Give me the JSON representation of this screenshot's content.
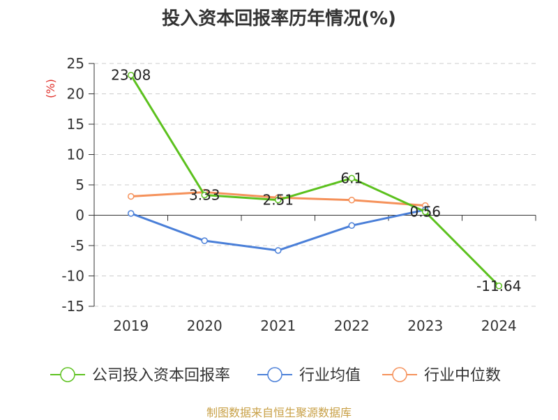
{
  "title": "投入资本回报率历年情况(%)",
  "source": "制图数据来自恒生聚源数据库",
  "colors": {
    "company": "#5cc11e",
    "industry_avg": "#4a7fd8",
    "industry_median": "#f5915a",
    "unit": "#e0302a",
    "source": "#c8a046"
  },
  "chart_data": {
    "type": "line",
    "title": "投入资本回报率历年情况(%)",
    "ylabel": "(%)",
    "xlabel": "",
    "categories": [
      "2019",
      "2020",
      "2021",
      "2022",
      "2023",
      "2024"
    ],
    "ylim": [
      -15,
      25
    ],
    "yticks": [
      25,
      20,
      15,
      10,
      5,
      0,
      -5,
      -10,
      -15
    ],
    "grid": true,
    "legend_position": "bottom",
    "series": [
      {
        "name": "公司投入资本回报率",
        "color": "#5cc11e",
        "values": [
          23.08,
          3.33,
          2.51,
          6.1,
          0.56,
          -11.64
        ],
        "labels": [
          "23.08",
          "3.33",
          "2.51",
          "6.1",
          "0.56",
          "-11.64"
        ]
      },
      {
        "name": "行业均值",
        "color": "#4a7fd8",
        "values": [
          0.3,
          -4.2,
          -5.8,
          -1.7,
          0.9,
          null
        ]
      },
      {
        "name": "行业中位数",
        "color": "#f5915a",
        "values": [
          3.1,
          3.8,
          2.9,
          2.5,
          1.6,
          null
        ]
      }
    ]
  }
}
